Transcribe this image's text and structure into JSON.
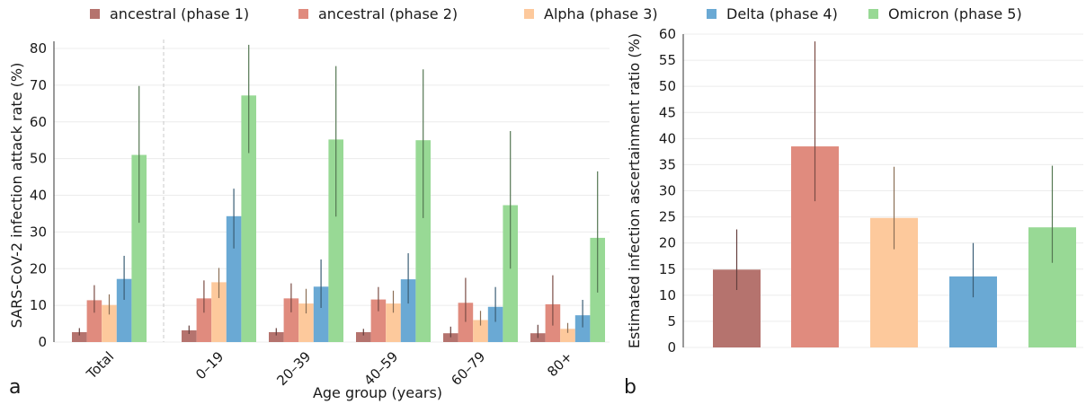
{
  "legend": [
    {
      "label": "ancestral (phase 1)",
      "color": "#b5736e"
    },
    {
      "label": "ancestral (phase 2)",
      "color": "#e08b7e"
    },
    {
      "label": "Alpha (phase 3)",
      "color": "#fdc99c"
    },
    {
      "label": "Delta (phase 4)",
      "color": "#6aa9d4"
    },
    {
      "label": "Omicron (phase 5)",
      "color": "#98d995"
    }
  ],
  "panels": {
    "a": "a",
    "b": "b"
  },
  "chart_data": [
    {
      "type": "bar",
      "panel": "a",
      "xlabel": "Age group (years)",
      "ylabel": "SARS-CoV-2 infection attack rate (%)",
      "ylim": [
        0,
        80
      ],
      "yticks": [
        0,
        10,
        20,
        30,
        40,
        50,
        60,
        70,
        80
      ],
      "grid": true,
      "categories": [
        "Total",
        "0–19",
        "20–39",
        "40–59",
        "60–79",
        "80+"
      ],
      "series": [
        {
          "name": "ancestral (phase 1)",
          "values": [
            2.7,
            3.2,
            2.7,
            2.7,
            2.4,
            2.4
          ],
          "lower": [
            1.8,
            2.2,
            1.8,
            1.8,
            1.3,
            1.1
          ],
          "upper": [
            3.8,
            4.5,
            3.8,
            3.6,
            4.2,
            4.7
          ]
        },
        {
          "name": "ancestral (phase 2)",
          "values": [
            11.4,
            11.9,
            11.9,
            11.6,
            10.7,
            10.3
          ],
          "lower": [
            8.0,
            8.0,
            8.1,
            8.4,
            5.5,
            4.5
          ],
          "upper": [
            15.5,
            16.8,
            16.0,
            15.0,
            17.5,
            18.2
          ]
        },
        {
          "name": "Alpha (phase 3)",
          "values": [
            10.1,
            16.3,
            10.5,
            10.5,
            6.0,
            3.6
          ],
          "lower": [
            7.5,
            12.0,
            7.8,
            8.0,
            4.5,
            2.5
          ],
          "upper": [
            13.0,
            20.2,
            14.5,
            14.0,
            8.5,
            5.2
          ]
        },
        {
          "name": "Delta (phase 4)",
          "values": [
            17.2,
            34.3,
            15.1,
            17.1,
            9.6,
            7.3
          ],
          "lower": [
            11.5,
            25.5,
            9.3,
            10.5,
            5.5,
            4.0
          ],
          "upper": [
            23.5,
            41.8,
            22.5,
            24.2,
            15.0,
            11.5
          ]
        },
        {
          "name": "Omicron (phase 5)",
          "values": [
            51.0,
            67.2,
            55.2,
            55.0,
            37.3,
            28.4
          ],
          "lower": [
            32.5,
            51.5,
            34.2,
            33.8,
            20.0,
            13.5
          ],
          "upper": [
            69.8,
            81.0,
            75.2,
            74.3,
            57.5,
            46.5
          ]
        }
      ]
    },
    {
      "type": "bar",
      "panel": "b",
      "xlabel": "",
      "ylabel": "Estimated infection ascertainment ratio (%)",
      "ylim": [
        0,
        60
      ],
      "yticks": [
        0,
        5,
        10,
        15,
        20,
        25,
        30,
        35,
        40,
        45,
        50,
        55,
        60
      ],
      "grid": true,
      "categories": [
        "ancestral (phase 1)",
        "ancestral (phase 2)",
        "Alpha (phase 3)",
        "Delta (phase 4)",
        "Omicron (phase 5)"
      ],
      "values": [
        14.9,
        38.5,
        24.8,
        13.6,
        23.0
      ],
      "lower": [
        11.0,
        28.0,
        18.8,
        9.6,
        16.2
      ],
      "upper": [
        22.6,
        58.6,
        34.6,
        20.0,
        34.8
      ]
    }
  ]
}
